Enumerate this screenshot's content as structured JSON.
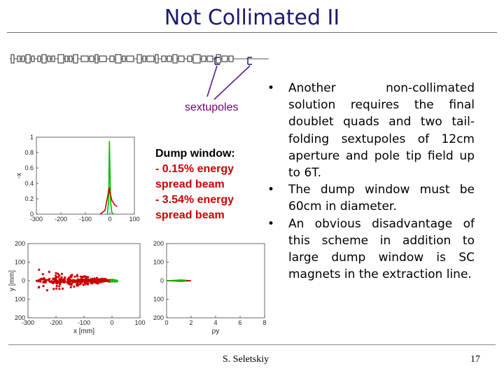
{
  "title": "Not Collimated II",
  "sextupoles_label": "sextupoles",
  "dump_window": {
    "heading": "Dump window:",
    "line1": "-  0.15% energy spread beam",
    "line2": "-  3.54% energy spread beam"
  },
  "bullets": [
    "Another non-collimated solution requires the final doublet quads and two tail-folding sextupoles of 12cm aperture and pole tip field up to 6T.",
    "The dump window must be 60cm in diameter.",
    "An obvious disadvantage of this scheme in addition to large dump window is SC magnets in the extraction line."
  ],
  "bullet_symbol": "•",
  "footer": {
    "author": "S. Seletskiy",
    "page": "17"
  },
  "colors": {
    "title": "#1a1a6e",
    "sextupole_label": "#6b006b",
    "series_narrow": "#00bb00",
    "series_wide": "#cc0000"
  },
  "chart_data": [
    {
      "type": "line",
      "ylabel": "-x",
      "x_ticks": [
        "-300",
        "-200",
        "-100",
        "0",
        "100"
      ],
      "y_ticks": [
        "0",
        "0.2",
        "0.4",
        "0.6",
        "0.8",
        "1"
      ],
      "xlim": [
        -300,
        100
      ],
      "ylim": [
        0,
        1
      ],
      "series": [
        {
          "color": "#00bb00",
          "points": [
            [
              -10,
              0
            ],
            [
              -5,
              0.2
            ],
            [
              -2,
              0.95
            ],
            [
              0,
              0.6
            ],
            [
              3,
              0.15
            ],
            [
              8,
              0.02
            ],
            [
              15,
              0
            ]
          ]
        },
        {
          "color": "#cc0000",
          "points": [
            [
              -40,
              0
            ],
            [
              -20,
              0.05
            ],
            [
              -8,
              0.25
            ],
            [
              -3,
              0.35
            ],
            [
              0,
              0.28
            ],
            [
              8,
              0.18
            ],
            [
              20,
              0.12
            ],
            [
              30,
              0.1
            ]
          ]
        }
      ]
    },
    {
      "type": "scatter",
      "xlabel": "x [mm]",
      "ylabel": "y [mm]",
      "x_ticks": [
        "-300",
        "-200",
        "-100",
        "0",
        "100"
      ],
      "y_ticks": [
        "200",
        "100",
        "0",
        "100",
        "200"
      ],
      "xlim": [
        -300,
        100
      ],
      "ylim": [
        -200,
        200
      ]
    },
    {
      "type": "line",
      "xlabel": "ρy",
      "x_ticks": [
        "0",
        "2",
        "4",
        "6",
        "8"
      ],
      "y_ticks": [
        "200",
        "100",
        "0",
        "100",
        "200"
      ],
      "xlim": [
        0,
        8
      ],
      "ylim": [
        -200,
        200
      ]
    }
  ]
}
